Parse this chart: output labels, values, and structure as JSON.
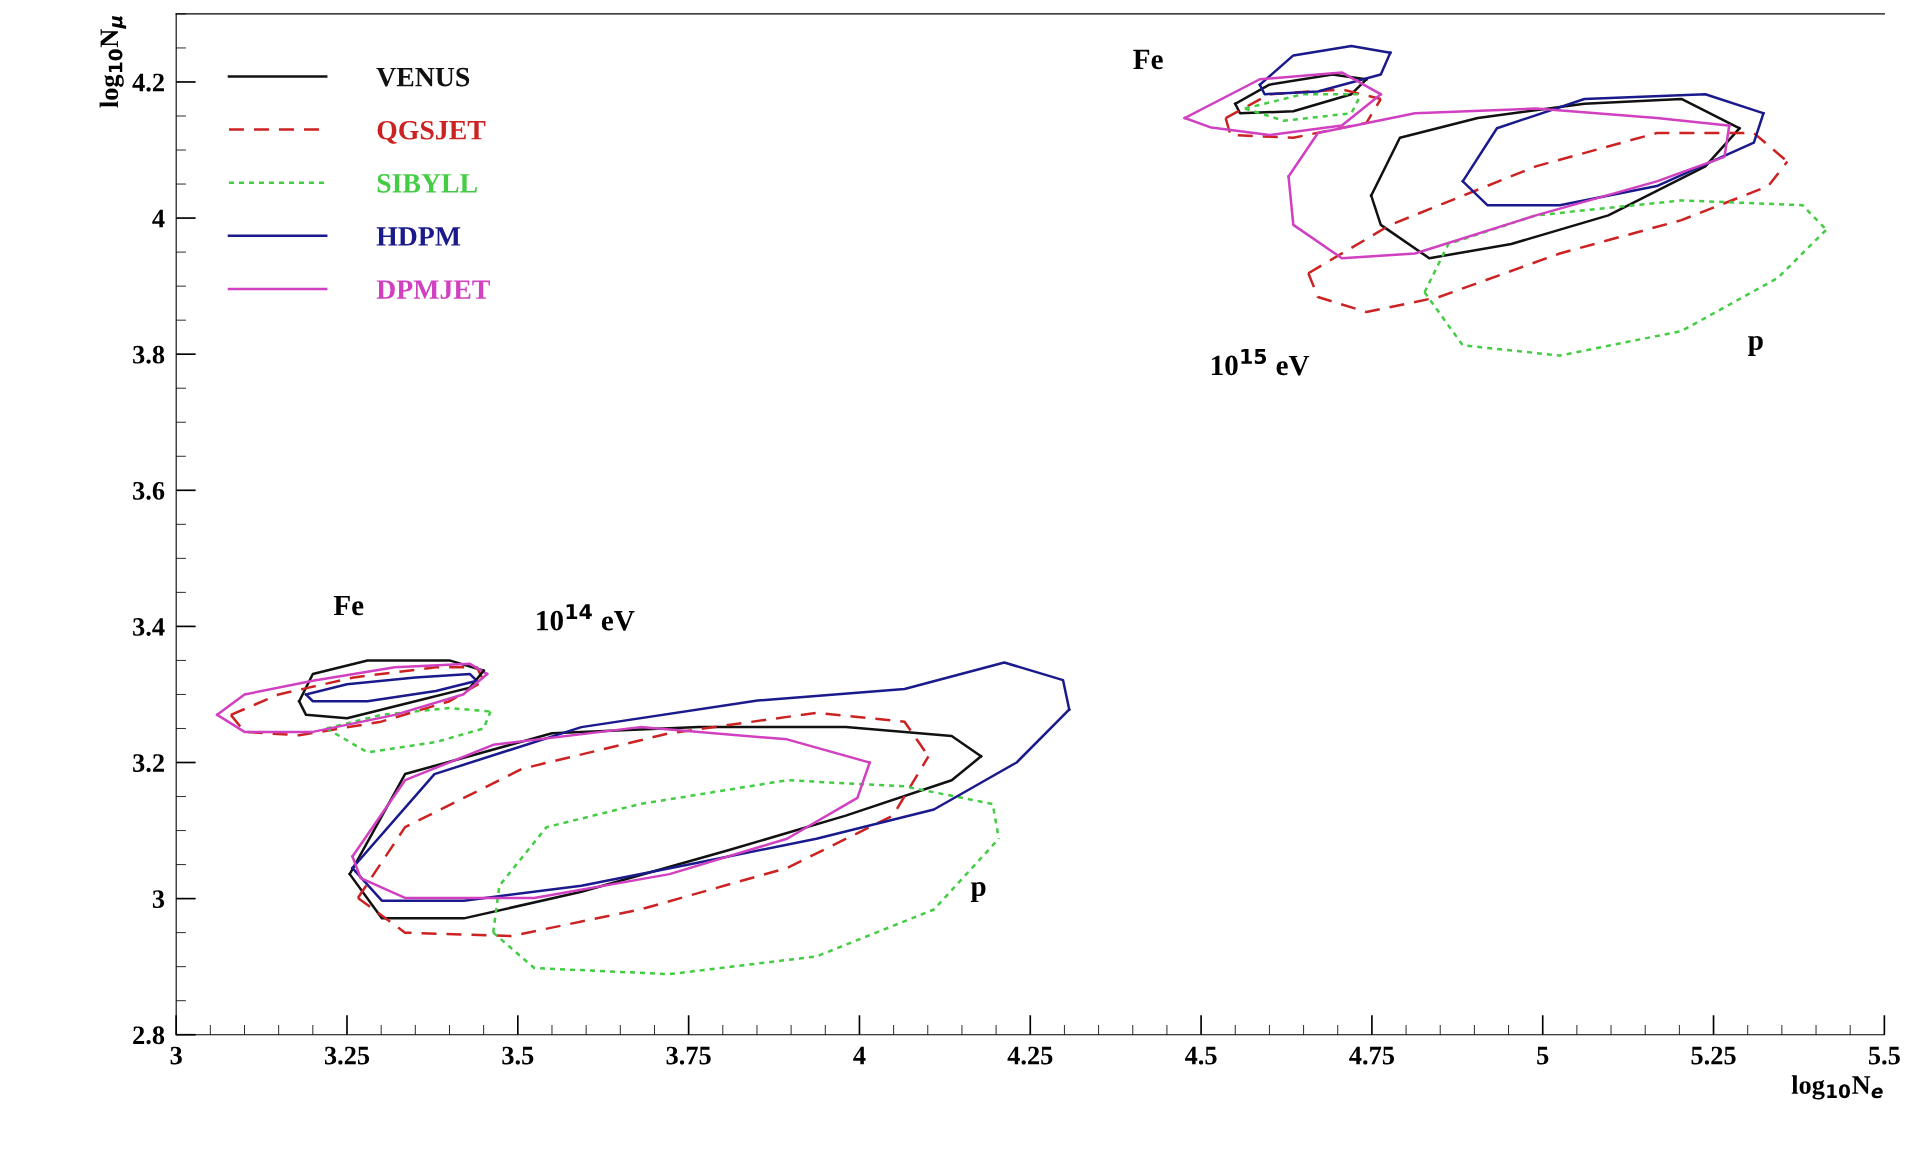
{
  "chart_data": {
    "type": "line",
    "xlabel": "log$_{10}$N$_{e}$",
    "ylabel": "log$_{10}$N$_{μ}$",
    "xlim": [
      3,
      5.5
    ],
    "ylim": [
      2.8,
      4.3
    ],
    "xticks": [
      3,
      3.25,
      3.5,
      3.75,
      4,
      4.25,
      4.5,
      4.75,
      5,
      5.25,
      5.5
    ],
    "yticks": [
      2.8,
      3,
      3.2,
      3.4,
      3.6,
      3.8,
      4,
      4.2
    ],
    "grid": false,
    "legend": "top left",
    "annotations": [
      "Fe",
      "10$^{14}$ eV",
      "p",
      "Fe",
      "10$^{15}$ eV",
      "p"
    ],
    "series": [
      {
        "name": "VENUS",
        "color": "#111111",
        "line_style": "solid",
        "x": [
          3.18,
          3.2,
          3.28,
          3.4,
          3.45
        ],
        "values": [
          3.29,
          3.33,
          3.35,
          3.35,
          3.335
        ]
      },
      {
        "name": "QGSJET",
        "color": "#cc2222",
        "line_style": "dashed",
        "x": [
          3.08,
          3.15,
          3.26,
          3.38,
          3.44,
          3.45
        ],
        "values": [
          3.27,
          3.3,
          3.325,
          3.34,
          3.34,
          3.32
        ]
      },
      {
        "name": "SIBYLL",
        "color": "#44cc44",
        "line_style": "dotted",
        "x": [
          3.22,
          3.3,
          3.4,
          3.46
        ],
        "values": [
          3.25,
          3.27,
          3.28,
          3.275
        ]
      },
      {
        "name": "HDPM",
        "color": "#1a1a8c",
        "line_style": "solid",
        "x": [
          3.19,
          3.25,
          3.35,
          3.43,
          3.44
        ],
        "values": [
          3.3,
          3.315,
          3.325,
          3.33,
          3.32
        ]
      },
      {
        "name": "DPMJET",
        "color": "#d040c0",
        "line_style": "solid",
        "x": [
          3.06,
          3.1,
          3.2,
          3.32,
          3.43,
          3.455
        ],
        "values": [
          3.27,
          3.3,
          3.32,
          3.34,
          3.345,
          3.33
        ]
      },
      {
        "color": "#111111",
        "line_style": "solid",
        "x": [
          3.18,
          3.19,
          3.25,
          3.35,
          3.43,
          3.45
        ],
        "values": [
          3.29,
          3.27,
          3.265,
          3.29,
          3.31,
          3.335
        ]
      },
      {
        "color": "#cc2222",
        "line_style": "dashed",
        "x": [
          3.08,
          3.1,
          3.18,
          3.3,
          3.4,
          3.45
        ],
        "values": [
          3.27,
          3.245,
          3.24,
          3.26,
          3.29,
          3.32
        ]
      },
      {
        "color": "#44cc44",
        "line_style": "dotted",
        "x": [
          3.22,
          3.28,
          3.38,
          3.45,
          3.46
        ],
        "values": [
          3.25,
          3.215,
          3.23,
          3.25,
          3.275
        ]
      },
      {
        "color": "#1a1a8c",
        "line_style": "solid",
        "x": [
          3.19,
          3.2,
          3.28,
          3.38,
          3.44
        ],
        "values": [
          3.3,
          3.29,
          3.29,
          3.305,
          3.32
        ]
      },
      {
        "color": "#d040c0",
        "line_style": "solid",
        "x": [
          3.06,
          3.1,
          3.2,
          3.32,
          3.42,
          3.455
        ],
        "values": [
          3.27,
          3.245,
          3.245,
          3.27,
          3.3,
          3.33
        ]
      },
      {
        "color": "#111111",
        "line_style": "solid",
        "x": [
          3.254,
          3.335,
          3.55,
          3.765,
          3.98,
          4.135,
          4.178
        ],
        "values": [
          3.036,
          3.183,
          3.243,
          3.252,
          3.252,
          3.239,
          3.209
        ]
      },
      {
        "color": "#111111",
        "line_style": "solid",
        "x": [
          3.254,
          3.301,
          3.421,
          3.593,
          3.808,
          3.98,
          4.135,
          4.178
        ],
        "values": [
          3.036,
          2.971,
          2.971,
          3.01,
          3.071,
          3.122,
          3.174,
          3.209
        ]
      },
      {
        "color": "#cc2222",
        "line_style": "dashed",
        "x": [
          3.266,
          3.335,
          3.507,
          3.722,
          3.937,
          4.066,
          4.101
        ],
        "values": [
          3.001,
          3.105,
          3.191,
          3.243,
          3.273,
          3.26,
          3.209
        ]
      },
      {
        "color": "#cc2222",
        "line_style": "dashed",
        "x": [
          3.266,
          3.335,
          3.49,
          3.679,
          3.894,
          4.049,
          4.101
        ],
        "values": [
          3.001,
          2.95,
          2.945,
          2.984,
          3.045,
          3.122,
          3.209
        ]
      },
      {
        "color": "#44cc44",
        "line_style": "dotted",
        "x": [
          3.464,
          3.473,
          3.542,
          3.679,
          3.894,
          4.066,
          4.195,
          4.204
        ],
        "values": [
          2.95,
          3.019,
          3.105,
          3.139,
          3.174,
          3.165,
          3.139,
          3.088
        ]
      },
      {
        "color": "#44cc44",
        "line_style": "dotted",
        "x": [
          3.464,
          3.524,
          3.722,
          3.937,
          4.109,
          4.204
        ],
        "values": [
          2.95,
          2.898,
          2.889,
          2.915,
          2.984,
          3.088
        ]
      },
      {
        "color": "#1a1a8c",
        "line_style": "solid",
        "x": [
          3.258,
          3.378,
          3.593,
          3.851,
          4.066,
          4.212,
          4.298,
          4.307
        ],
        "values": [
          3.045,
          3.183,
          3.252,
          3.291,
          3.308,
          3.347,
          3.321,
          3.278
        ]
      },
      {
        "color": "#1a1a8c",
        "line_style": "solid",
        "x": [
          3.258,
          3.301,
          3.421,
          3.593,
          3.765,
          3.937,
          4.109,
          4.23,
          4.307
        ],
        "values": [
          3.045,
          2.997,
          2.997,
          3.019,
          3.053,
          3.088,
          3.131,
          3.2,
          3.278
        ]
      },
      {
        "color": "#d040c0",
        "line_style": "solid",
        "x": [
          3.258,
          3.335,
          3.464,
          3.679,
          3.894,
          4.015
        ],
        "values": [
          3.062,
          3.174,
          3.226,
          3.252,
          3.234,
          3.2
        ]
      },
      {
        "color": "#d040c0",
        "line_style": "solid",
        "x": [
          3.258,
          3.27,
          3.335,
          3.524,
          3.722,
          3.894,
          3.997,
          4.015
        ],
        "values": [
          3.062,
          3.03,
          3.001,
          3.001,
          3.036,
          3.088,
          3.148,
          3.2
        ]
      },
      {
        "color": "#111111",
        "line_style": "solid",
        "x": [
          4.55,
          4.6,
          4.692,
          4.742
        ],
        "values": [
          4.168,
          4.196,
          4.211,
          4.204
        ]
      },
      {
        "color": "#111111",
        "line_style": "solid",
        "x": [
          4.55,
          4.557,
          4.635,
          4.72,
          4.742
        ],
        "values": [
          4.168,
          4.154,
          4.157,
          4.182,
          4.204
        ]
      },
      {
        "color": "#cc2222",
        "line_style": "dashed",
        "x": [
          4.536,
          4.6,
          4.706,
          4.763
        ],
        "values": [
          4.147,
          4.182,
          4.189,
          4.175
        ]
      },
      {
        "color": "#cc2222",
        "line_style": "dashed",
        "x": [
          4.536,
          4.543,
          4.635,
          4.742,
          4.763
        ],
        "values": [
          4.147,
          4.122,
          4.118,
          4.14,
          4.175
        ]
      },
      {
        "color": "#44cc44",
        "line_style": "dotted",
        "x": [
          4.564,
          4.649,
          4.734
        ],
        "values": [
          4.161,
          4.182,
          4.182
        ]
      },
      {
        "color": "#44cc44",
        "line_style": "dotted",
        "x": [
          4.564,
          4.621,
          4.72,
          4.734
        ],
        "values": [
          4.161,
          4.143,
          4.154,
          4.182
        ]
      },
      {
        "color": "#1a1a8c",
        "line_style": "solid",
        "x": [
          4.586,
          4.635,
          4.72,
          4.777
        ],
        "values": [
          4.196,
          4.239,
          4.253,
          4.243
        ]
      },
      {
        "color": "#1a1a8c",
        "line_style": "solid",
        "x": [
          4.586,
          4.593,
          4.671,
          4.763,
          4.777
        ],
        "values": [
          4.196,
          4.182,
          4.186,
          4.211,
          4.243
        ]
      },
      {
        "color": "#d040c0",
        "line_style": "solid",
        "x": [
          4.476,
          4.586,
          4.706,
          4.763
        ],
        "values": [
          4.147,
          4.204,
          4.214,
          4.182
        ]
      },
      {
        "color": "#d040c0",
        "line_style": "solid",
        "x": [
          4.476,
          4.515,
          4.6,
          4.706,
          4.763
        ],
        "values": [
          4.147,
          4.133,
          4.122,
          4.136,
          4.182
        ]
      },
      {
        "color": "#111111",
        "line_style": "solid",
        "x": [
          4.749,
          4.791,
          4.905,
          5.061,
          5.203,
          5.288
        ],
        "values": [
          4.033,
          4.118,
          4.147,
          4.168,
          4.175,
          4.132
        ]
      },
      {
        "color": "#111111",
        "line_style": "solid",
        "x": [
          4.749,
          4.763,
          4.834,
          4.954,
          5.096,
          5.238,
          5.288
        ],
        "values": [
          4.033,
          3.99,
          3.941,
          3.962,
          4.004,
          4.076,
          4.132
        ]
      },
      {
        "color": "#cc2222",
        "line_style": "dashed",
        "x": [
          4.657,
          4.777,
          4.99,
          5.167,
          5.309,
          5.358
        ],
        "values": [
          3.919,
          3.99,
          4.076,
          4.125,
          4.125,
          4.083
        ]
      },
      {
        "color": "#cc2222",
        "line_style": "dashed",
        "x": [
          4.657,
          4.671,
          4.742,
          4.848,
          5.025,
          5.203,
          5.33,
          5.358
        ],
        "values": [
          3.919,
          3.884,
          3.862,
          3.884,
          3.948,
          3.997,
          4.047,
          4.083
        ]
      },
      {
        "color": "#44cc44",
        "line_style": "dotted",
        "x": [
          4.827,
          4.862,
          4.99,
          5.203,
          5.38,
          5.415
        ],
        "values": [
          3.891,
          3.962,
          4.004,
          4.026,
          4.019,
          3.983
        ]
      },
      {
        "color": "#44cc44",
        "line_style": "dotted",
        "x": [
          4.827,
          4.883,
          5.025,
          5.203,
          5.344,
          5.415
        ],
        "values": [
          3.891,
          3.813,
          3.798,
          3.834,
          3.912,
          3.983
        ]
      },
      {
        "color": "#1a1a8c",
        "line_style": "solid",
        "x": [
          4.883,
          4.933,
          5.061,
          5.238,
          5.323
        ],
        "values": [
          4.054,
          4.132,
          4.175,
          4.182,
          4.154
        ]
      },
      {
        "color": "#1a1a8c",
        "line_style": "solid",
        "x": [
          4.883,
          4.919,
          5.025,
          5.167,
          5.309,
          5.323
        ],
        "values": [
          4.054,
          4.019,
          4.019,
          4.047,
          4.111,
          4.154
        ]
      },
      {
        "color": "#d040c0",
        "line_style": "solid",
        "x": [
          4.628,
          4.671,
          4.813,
          4.99,
          5.167,
          5.273
        ],
        "values": [
          4.061,
          4.125,
          4.154,
          4.161,
          4.147,
          4.136
        ]
      },
      {
        "color": "#d040c0",
        "line_style": "solid",
        "x": [
          4.628,
          4.635,
          4.706,
          4.813,
          4.99,
          5.167,
          5.266,
          5.273
        ],
        "values": [
          4.061,
          3.99,
          3.941,
          3.948,
          4.004,
          4.054,
          4.09,
          4.136
        ]
      }
    ]
  }
}
